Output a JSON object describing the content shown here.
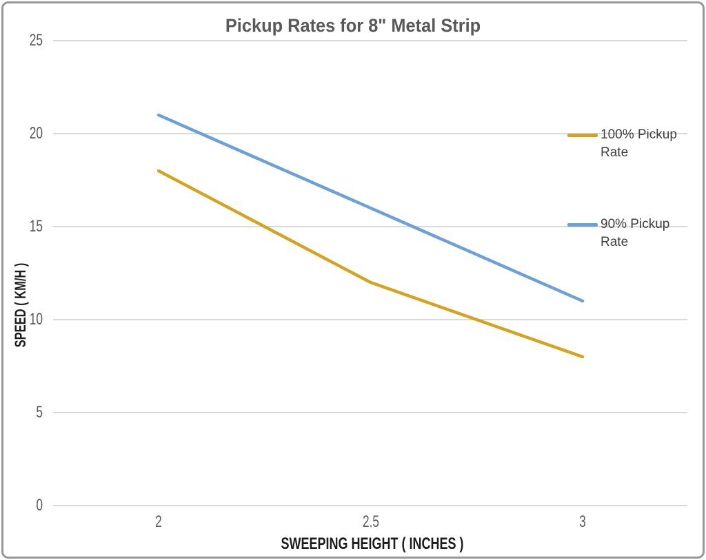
{
  "window": {
    "background": "#ffffff",
    "border_color": "#979797"
  },
  "chart_data": {
    "type": "line",
    "title": "Pickup Rates for 8\" Metal Strip",
    "xlabel": "SWEEPING HEIGHT ( INCHES )",
    "ylabel": "SPEED ( KM/H )",
    "x": [
      2,
      2.5,
      3
    ],
    "x_tick_labels": [
      "2",
      "2.5",
      "3"
    ],
    "ylim": [
      0,
      25
    ],
    "ytick_step": 5,
    "grid": true,
    "legend_position": "right",
    "series": [
      {
        "name": "100% Pickup Rate",
        "color": "#D4A31F",
        "values": [
          18,
          12,
          8
        ]
      },
      {
        "name": "90% Pickup Rate",
        "color": "#6CA0D8",
        "values": [
          21,
          16,
          11
        ]
      }
    ],
    "colors": {
      "gridline": "#D9D9D9",
      "tick_text": "#595959",
      "title_text": "#595959",
      "axis_label_text": "#1C1C1C",
      "legend_text": "#404040"
    }
  }
}
